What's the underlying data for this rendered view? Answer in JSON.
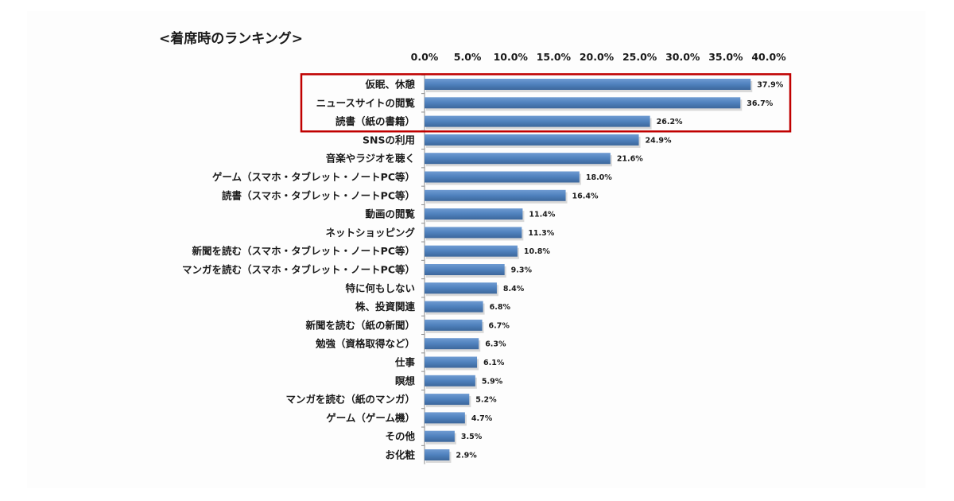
{
  "chart_data": {
    "type": "bar",
    "orientation": "horizontal",
    "title": "<着席時のランキング>",
    "categories": [
      "仮眠、休憩",
      "ニュースサイトの閲覧",
      "読書（紙の書籍）",
      "SNSの利用",
      "音楽やラジオを聴く",
      "ゲーム（スマホ・タブレット・ノートPC等）",
      "読書（スマホ・タブレット・ノートPC等）",
      "動画の閲覧",
      "ネットショッピング",
      "新聞を読む（スマホ・タブレット・ノートPC等）",
      "マンガを読む（スマホ・タブレット・ノートPC等）",
      "特に何もしない",
      "株、投資関連",
      "新聞を読む（紙の新聞）",
      "勉強（資格取得など）",
      "仕事",
      "瞑想",
      "マンガを読む（紙のマンガ）",
      "ゲーム（ゲーム機）",
      "その他",
      "お化粧"
    ],
    "values": [
      37.9,
      36.7,
      26.2,
      24.9,
      21.6,
      18.0,
      16.4,
      11.4,
      11.3,
      10.8,
      9.3,
      8.4,
      6.8,
      6.7,
      6.3,
      6.1,
      5.9,
      5.2,
      4.7,
      3.5,
      2.9
    ],
    "value_labels": [
      "37.9%",
      "36.7%",
      "26.2%",
      "24.9%",
      "21.6%",
      "18.0%",
      "16.4%",
      "11.4%",
      "11.3%",
      "10.8%",
      "9.3%",
      "8.4%",
      "6.8%",
      "6.7%",
      "6.3%",
      "6.1%",
      "5.9%",
      "5.2%",
      "4.7%",
      "3.5%",
      "2.9%"
    ],
    "xlim": [
      0,
      40
    ],
    "x_ticks": [
      "0.0%",
      "5.0%",
      "10.0%",
      "15.0%",
      "20.0%",
      "25.0%",
      "30.0%",
      "35.0%",
      "40.0%"
    ],
    "x_axis_position": "top",
    "grid": false,
    "bar_color": "#4f81bd",
    "highlight": {
      "first_n": 3,
      "color": "#c00000"
    }
  }
}
